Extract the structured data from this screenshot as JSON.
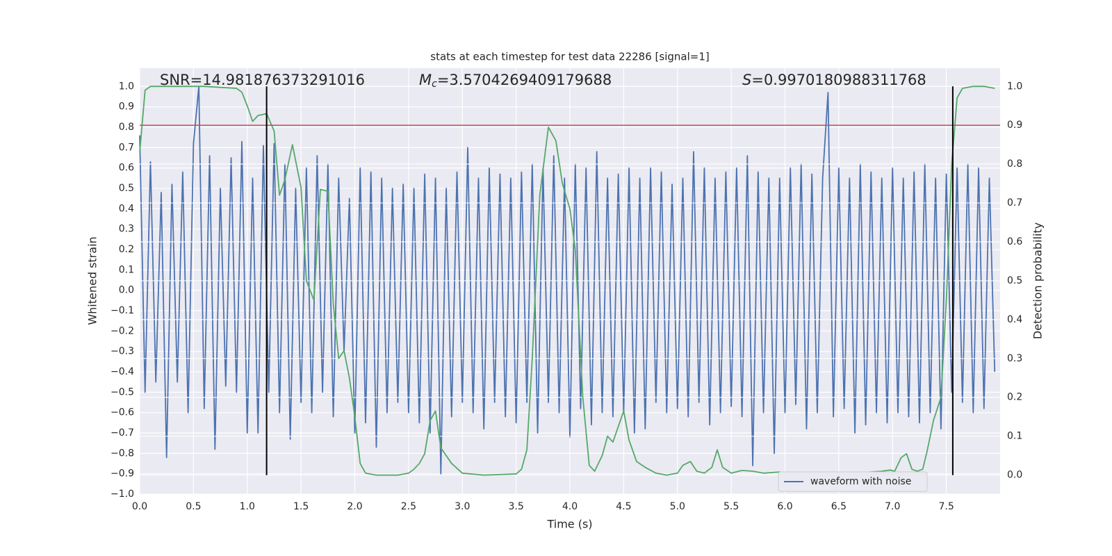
{
  "chart_data": {
    "type": "line",
    "title": "stats at each timestep for test data 22286 [signal=1]",
    "x_label": "Time (s)",
    "y_label": "Whitened strain",
    "y2_label": "Detection probability",
    "annotations": [
      {
        "text": "SNR=14.981876373291016"
      },
      {
        "symbol": "M",
        "subscript": "c",
        "text": "=3.5704269409179688"
      },
      {
        "symbol": "S",
        "text": "=0.9970180988311768"
      }
    ],
    "xlim": [
      0,
      8.0
    ],
    "ylim": [
      -1.0,
      1.09
    ],
    "y2lim": [
      -0.049,
      1.047
    ],
    "xticks": [
      {
        "value": 0,
        "label": "0.0"
      },
      0.5,
      {
        "value": 1,
        "label": "1.0"
      },
      1.5,
      {
        "value": 2,
        "label": "2.0"
      },
      2.5,
      {
        "value": 3,
        "label": "3.0"
      },
      3.5,
      {
        "value": 4,
        "label": "4.0"
      },
      4.5,
      {
        "value": 5,
        "label": "5.0"
      },
      5.5,
      {
        "value": 6,
        "label": "6.0"
      },
      6.5,
      {
        "value": 7,
        "label": "7.0"
      },
      7.5
    ],
    "yticks": [
      {
        "value": -1,
        "label": "−1.0"
      },
      {
        "value": -0.9,
        "label": "−0.9"
      },
      {
        "value": -0.8,
        "label": "−0.8"
      },
      {
        "value": -0.7,
        "label": "−0.7"
      },
      {
        "value": -0.6,
        "label": "−0.6"
      },
      {
        "value": -0.5,
        "label": "−0.5"
      },
      {
        "value": -0.4,
        "label": "−0.4"
      },
      {
        "value": -0.3,
        "label": "−0.3"
      },
      {
        "value": -0.2,
        "label": "−0.2"
      },
      {
        "value": -0.1,
        "label": "−0.1"
      },
      {
        "value": 0,
        "label": "0.0"
      },
      0.1,
      0.2,
      0.3,
      0.4,
      0.5,
      0.6,
      0.7,
      0.8,
      0.9,
      {
        "value": 1,
        "label": "1.0"
      }
    ],
    "y2ticks": [
      {
        "value": 0,
        "label": "0.0"
      },
      0.1,
      0.2,
      0.3,
      0.4,
      0.5,
      0.6,
      0.7,
      0.8,
      0.9,
      {
        "value": 1,
        "label": "1.0"
      }
    ],
    "grid": true,
    "legend": "lower right",
    "hline": {
      "y2": 0.9,
      "color": "#c44e52"
    },
    "vlines": {
      "x": [
        1.18,
        7.56
      ],
      "color": "#000000"
    },
    "series": [
      {
        "name": "waveform with noise",
        "color": "#4c72b0",
        "axis": "y",
        "x": [
          0,
          0.05,
          0.1,
          0.15,
          0.2,
          0.25,
          0.3,
          0.35,
          0.4,
          0.45,
          0.5,
          0.55,
          0.6,
          0.65,
          0.7,
          0.75,
          0.8,
          0.85,
          0.9,
          0.95,
          1,
          1.05,
          1.1,
          1.15,
          1.2,
          1.25,
          1.3,
          1.35,
          1.4,
          1.45,
          1.5,
          1.55,
          1.6,
          1.65,
          1.7,
          1.75,
          1.8,
          1.85,
          1.9,
          1.95,
          2,
          2.05,
          2.1,
          2.15,
          2.2,
          2.25,
          2.3,
          2.35,
          2.4,
          2.45,
          2.5,
          2.55,
          2.6,
          2.65,
          2.7,
          2.75,
          2.8,
          2.85,
          2.9,
          2.95,
          3,
          3.05,
          3.1,
          3.15,
          3.2,
          3.25,
          3.3,
          3.35,
          3.4,
          3.45,
          3.5,
          3.55,
          3.6,
          3.65,
          3.7,
          3.75,
          3.8,
          3.85,
          3.9,
          3.95,
          4,
          4.05,
          4.1,
          4.15,
          4.2,
          4.25,
          4.3,
          4.35,
          4.4,
          4.45,
          4.5,
          4.55,
          4.6,
          4.65,
          4.7,
          4.75,
          4.8,
          4.85,
          4.9,
          4.95,
          5,
          5.05,
          5.1,
          5.15,
          5.2,
          5.25,
          5.3,
          5.35,
          5.4,
          5.45,
          5.5,
          5.55,
          5.6,
          5.65,
          5.7,
          5.75,
          5.8,
          5.85,
          5.9,
          5.95,
          6,
          6.05,
          6.1,
          6.15,
          6.2,
          6.25,
          6.3,
          6.35,
          6.4,
          6.45,
          6.5,
          6.55,
          6.6,
          6.65,
          6.7,
          6.75,
          6.8,
          6.85,
          6.9,
          6.95,
          7,
          7.05,
          7.1,
          7.15,
          7.2,
          7.25,
          7.3,
          7.35,
          7.4,
          7.45,
          7.5,
          7.55,
          7.6,
          7.65,
          7.7,
          7.75,
          7.8,
          7.85,
          7.9,
          7.95
        ],
        "values": [
          0.76,
          -0.5,
          0.63,
          -0.45,
          0.48,
          -0.82,
          0.52,
          -0.45,
          0.58,
          -0.6,
          0.72,
          1.0,
          -0.58,
          0.66,
          -0.78,
          0.5,
          -0.47,
          0.65,
          -0.5,
          0.73,
          -0.7,
          0.55,
          -0.7,
          0.71,
          -0.5,
          0.72,
          -0.6,
          0.62,
          -0.73,
          0.5,
          -0.55,
          0.6,
          -0.6,
          0.66,
          -0.5,
          0.62,
          -0.62,
          0.55,
          -0.3,
          0.45,
          -0.7,
          0.6,
          -0.65,
          0.58,
          -0.77,
          0.55,
          -0.6,
          0.5,
          -0.55,
          0.52,
          -0.6,
          0.5,
          -0.65,
          0.57,
          -0.7,
          0.55,
          -0.9,
          0.5,
          -0.62,
          0.58,
          -0.55,
          0.7,
          -0.6,
          0.55,
          -0.68,
          0.6,
          -0.55,
          0.57,
          -0.62,
          0.55,
          -0.65,
          0.58,
          -0.55,
          0.62,
          -0.7,
          0.6,
          -0.55,
          0.66,
          -0.6,
          0.55,
          -0.72,
          0.62,
          -0.58,
          0.6,
          -0.66,
          0.68,
          -0.6,
          0.55,
          -0.62,
          0.57,
          -0.6,
          0.6,
          -0.7,
          0.55,
          -0.68,
          0.6,
          -0.55,
          0.58,
          -0.6,
          0.52,
          -0.58,
          0.55,
          -0.62,
          0.68,
          -0.55,
          0.6,
          -0.66,
          0.55,
          -0.6,
          0.58,
          -0.57,
          0.6,
          -0.62,
          0.66,
          -0.86,
          0.58,
          -0.6,
          0.55,
          -0.8,
          0.55,
          -0.6,
          0.6,
          -0.56,
          0.62,
          -0.68,
          0.57,
          -0.6,
          0.55,
          0.97,
          -0.62,
          0.6,
          -0.58,
          0.55,
          -0.7,
          0.62,
          -0.66,
          0.58,
          -0.6,
          0.55,
          -0.65,
          0.6,
          -0.6,
          0.55,
          -0.62,
          0.58,
          -0.65,
          0.62,
          -0.6,
          0.55,
          -0.68,
          0.57,
          -0.5,
          0.6,
          -0.55,
          0.62,
          -0.6,
          0.6,
          -0.58,
          0.55,
          -0.4
        ]
      },
      {
        "color": "#55a868",
        "axis": "y2",
        "x": [
          0,
          0.05,
          0.1,
          0.3,
          0.6,
          0.9,
          0.95,
          1,
          1.05,
          1.1,
          1.18,
          1.25,
          1.3,
          1.35,
          1.42,
          1.5,
          1.55,
          1.62,
          1.68,
          1.75,
          1.8,
          1.85,
          1.9,
          1.95,
          2,
          2.05,
          2.1,
          2.2,
          2.4,
          2.5,
          2.55,
          2.6,
          2.65,
          2.7,
          2.75,
          2.8,
          2.9,
          3,
          3.2,
          3.5,
          3.55,
          3.6,
          3.65,
          3.72,
          3.8,
          3.87,
          3.93,
          4,
          4.05,
          4.12,
          4.18,
          4.23,
          4.3,
          4.35,
          4.4,
          4.5,
          4.55,
          4.62,
          4.7,
          4.8,
          4.9,
          5,
          5.05,
          5.12,
          5.18,
          5.25,
          5.32,
          5.37,
          5.42,
          5.5,
          5.6,
          5.7,
          5.8,
          5.95,
          6.05,
          6.3,
          6.6,
          6.9,
          6.98,
          7.02,
          7.08,
          7.13,
          7.18,
          7.23,
          7.28,
          7.32,
          7.38,
          7.45,
          7.5,
          7.55,
          7.6,
          7.65,
          7.75,
          7.85,
          7.95
        ],
        "values": [
          0.83,
          0.99,
          1.0,
          1.0,
          1.0,
          0.995,
          0.985,
          0.95,
          0.91,
          0.925,
          0.93,
          0.885,
          0.72,
          0.76,
          0.85,
          0.74,
          0.5,
          0.45,
          0.735,
          0.73,
          0.44,
          0.3,
          0.32,
          0.25,
          0.15,
          0.03,
          0.005,
          0.0,
          0.0,
          0.005,
          0.015,
          0.03,
          0.055,
          0.14,
          0.165,
          0.07,
          0.03,
          0.005,
          0.0,
          0.003,
          0.015,
          0.065,
          0.3,
          0.72,
          0.895,
          0.86,
          0.75,
          0.685,
          0.58,
          0.2,
          0.025,
          0.01,
          0.05,
          0.1,
          0.085,
          0.165,
          0.09,
          0.035,
          0.02,
          0.005,
          0.0,
          0.005,
          0.025,
          0.035,
          0.01,
          0.005,
          0.02,
          0.065,
          0.02,
          0.005,
          0.012,
          0.01,
          0.005,
          0.008,
          0.003,
          0.003,
          0.004,
          0.01,
          0.013,
          0.01,
          0.045,
          0.055,
          0.015,
          0.01,
          0.015,
          0.06,
          0.14,
          0.2,
          0.45,
          0.8,
          0.97,
          0.995,
          1.0,
          1.0,
          0.995
        ]
      }
    ]
  }
}
